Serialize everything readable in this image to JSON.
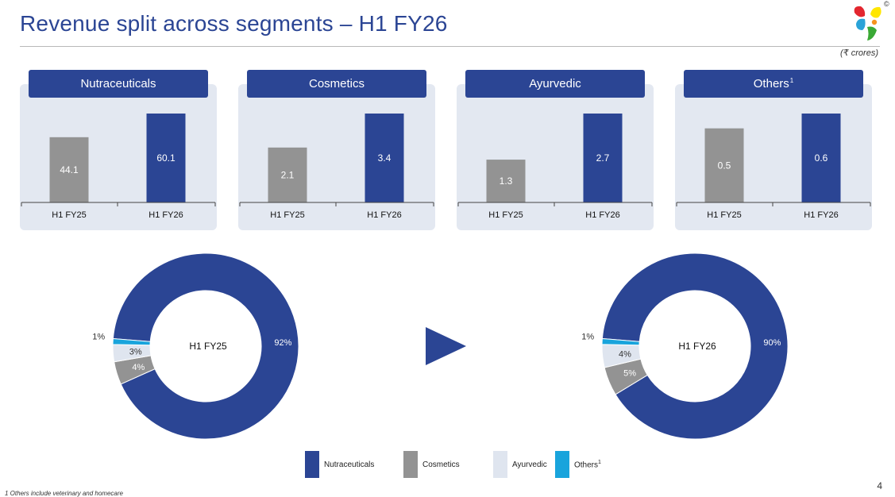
{
  "header": {
    "title": "Revenue split across segments – H1 FY26",
    "unit": "(₹ crores)",
    "copyright": "©"
  },
  "colors": {
    "primary": "#2b4594",
    "grey": "#939393",
    "ayurvedic": "#dfe5ef",
    "others": "#19a4dc",
    "panel_bg": "#e3e8f1",
    "logo_red": "#e3262f",
    "logo_yellow": "#ffe600",
    "logo_blue": "#2aa3d8",
    "logo_green": "#3aa935",
    "logo_orange": "#f7931e"
  },
  "chart_data": [
    {
      "type": "bar",
      "title": "Nutraceuticals",
      "categories": [
        "H1 FY25",
        "H1 FY26"
      ],
      "values": [
        44.1,
        60.1
      ],
      "labels": [
        "44.1",
        "60.1"
      ]
    },
    {
      "type": "bar",
      "title": "Cosmetics",
      "categories": [
        "H1 FY25",
        "H1 FY26"
      ],
      "values": [
        2.1,
        3.4
      ],
      "labels": [
        "2.1",
        "3.4"
      ]
    },
    {
      "type": "bar",
      "title": "Ayurvedic",
      "categories": [
        "H1 FY25",
        "H1 FY26"
      ],
      "values": [
        1.3,
        2.7
      ],
      "labels": [
        "1.3",
        "2.7"
      ]
    },
    {
      "type": "bar",
      "title": "Others",
      "title_sup": "1",
      "categories": [
        "H1 FY25",
        "H1 FY26"
      ],
      "values": [
        0.5,
        0.6
      ],
      "labels": [
        "0.5",
        "0.6"
      ]
    },
    {
      "type": "pie",
      "title": "H1 FY25",
      "categories": [
        "Nutraceuticals",
        "Cosmetics",
        "Ayurvedic",
        "Others"
      ],
      "values": [
        92,
        4,
        3,
        1
      ],
      "labels": [
        "92%",
        "4%",
        "3%",
        "1%"
      ]
    },
    {
      "type": "pie",
      "title": "H1 FY26",
      "categories": [
        "Nutraceuticals",
        "Cosmetics",
        "Ayurvedic",
        "Others"
      ],
      "values": [
        90,
        5,
        4,
        1
      ],
      "labels": [
        "90%",
        "5%",
        "4%",
        "1%"
      ]
    }
  ],
  "legend": {
    "items": [
      {
        "label": "Nutraceuticals",
        "color": "#2b4594"
      },
      {
        "label": "Cosmetics",
        "color": "#939393"
      },
      {
        "label": "Ayurvedic",
        "color": "#dfe5ef"
      },
      {
        "label": "Others",
        "color": "#19a4dc",
        "sup": "1"
      }
    ]
  },
  "footer": {
    "page_number": "4",
    "footnote": "1 Others include veterinary and homecare"
  }
}
